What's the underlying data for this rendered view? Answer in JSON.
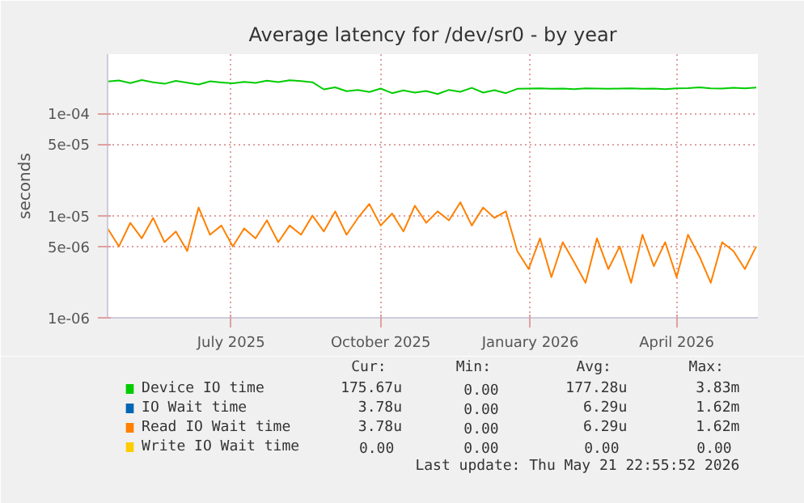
{
  "chart_data": {
    "type": "line",
    "title": "Average latency for /dev/sr0 - by year",
    "ylabel": "seconds",
    "log": "y",
    "grid": true,
    "legend": "bottom",
    "x": [
      "2025-04-16",
      "2025-04-23",
      "2025-04-30",
      "2025-05-07",
      "2025-05-14",
      "2025-05-21",
      "2025-05-28",
      "2025-06-04",
      "2025-06-11",
      "2025-06-18",
      "2025-06-25",
      "2025-07-02",
      "2025-07-09",
      "2025-07-16",
      "2025-07-23",
      "2025-07-30",
      "2025-08-06",
      "2025-08-13",
      "2025-08-20",
      "2025-08-27",
      "2025-09-03",
      "2025-09-10",
      "2025-09-17",
      "2025-09-24",
      "2025-10-01",
      "2025-10-08",
      "2025-10-15",
      "2025-10-22",
      "2025-10-29",
      "2025-11-05",
      "2025-11-12",
      "2025-11-19",
      "2025-11-26",
      "2025-12-03",
      "2025-12-10",
      "2025-12-17",
      "2025-12-24",
      "2025-12-31",
      "2026-01-07",
      "2026-01-14",
      "2026-01-21",
      "2026-01-28",
      "2026-02-04",
      "2026-02-11",
      "2026-02-18",
      "2026-02-25",
      "2026-03-04",
      "2026-03-11",
      "2026-03-18",
      "2026-03-25",
      "2026-04-01",
      "2026-04-08",
      "2026-04-15",
      "2026-04-22",
      "2026-04-29",
      "2026-05-06",
      "2026-05-13",
      "2026-05-20"
    ],
    "xlim": [
      "2025-04-16",
      "2026-05-21"
    ],
    "xticks": [
      {
        "value": "2025-07-01",
        "label": "July 2025"
      },
      {
        "value": "2025-10-01",
        "label": "October 2025"
      },
      {
        "value": "2026-01-01",
        "label": "January 2026"
      },
      {
        "value": "2026-04-01",
        "label": "April 2026"
      }
    ],
    "ylim": [
      1e-06,
      0.00038
    ],
    "yticks": [
      {
        "value": 1e-06,
        "label": "1e-06"
      },
      {
        "value": 5e-06,
        "label": "5e-06"
      },
      {
        "value": 1e-05,
        "label": "1e-05"
      },
      {
        "value": 5e-05,
        "label": "5e-05"
      },
      {
        "value": 0.0001,
        "label": "1e-04"
      }
    ],
    "series": [
      {
        "name": "Device IO time",
        "color": "#00cc00",
        "values": [
          0.000205,
          0.00021,
          0.000198,
          0.000212,
          0.000202,
          0.000195,
          0.000208,
          0.0002,
          0.000192,
          0.000206,
          0.000201,
          0.000197,
          0.000204,
          0.000199,
          0.000209,
          0.000203,
          0.000211,
          0.000207,
          0.000202,
          0.000172,
          0.00018,
          0.000165,
          0.00017,
          0.000162,
          0.000175,
          0.000158,
          0.000168,
          0.00016,
          0.000166,
          0.000155,
          0.00017,
          0.000163,
          0.000178,
          0.00016,
          0.000169,
          0.000158,
          0.000174,
          0.000175,
          0.000176,
          0.000174,
          0.000175,
          0.000173,
          0.000176,
          0.000175,
          0.000174,
          0.000175,
          0.000176,
          0.000174,
          0.000175,
          0.000173,
          0.000176,
          0.000177,
          0.00018,
          0.000176,
          0.000175,
          0.000178,
          0.000176,
          0.000179
        ]
      },
      {
        "name": "IO Wait time",
        "color": "#0066b3",
        "values": [
          null,
          null,
          null,
          null,
          null,
          null,
          null,
          null,
          null,
          null,
          null,
          null,
          null,
          null,
          null,
          null,
          null,
          null,
          null,
          null,
          null,
          null,
          null,
          null,
          null,
          null,
          null,
          null,
          null,
          null,
          null,
          null,
          null,
          null,
          null,
          null,
          null,
          null,
          null,
          null,
          null,
          null,
          null,
          null,
          null,
          null,
          null,
          null,
          null,
          null,
          null,
          null,
          null,
          null,
          null,
          null,
          null,
          null
        ]
      },
      {
        "name": "Read IO Wait time",
        "color": "#ff8000",
        "values": [
          7.5e-06,
          5e-06,
          8.5e-06,
          6e-06,
          9.5e-06,
          5.5e-06,
          7e-06,
          4.5e-06,
          1.2e-05,
          6.5e-06,
          8e-06,
          5e-06,
          7.5e-06,
          6e-06,
          9e-06,
          5.5e-06,
          8e-06,
          6.5e-06,
          1e-05,
          7e-06,
          1.1e-05,
          6.5e-06,
          9.5e-06,
          1.3e-05,
          8e-06,
          1.05e-05,
          7e-06,
          1.25e-05,
          8.5e-06,
          1.1e-05,
          9e-06,
          1.35e-05,
          8e-06,
          1.2e-05,
          9.5e-06,
          1.1e-05,
          4.5e-06,
          3e-06,
          6e-06,
          2.5e-06,
          5.5e-06,
          3.5e-06,
          2.2e-06,
          6e-06,
          3e-06,
          5e-06,
          2.2e-06,
          6.5e-06,
          3.2e-06,
          5.5e-06,
          2.5e-06,
          6.5e-06,
          4e-06,
          2.2e-06,
          5.5e-06,
          4.5e-06,
          3e-06,
          5e-06
        ]
      },
      {
        "name": "Write IO Wait time",
        "color": "#ffcc00",
        "values": [
          null,
          null,
          null,
          null,
          null,
          null,
          null,
          null,
          null,
          null,
          null,
          null,
          null,
          null,
          null,
          null,
          null,
          null,
          null,
          null,
          null,
          null,
          null,
          null,
          null,
          null,
          null,
          null,
          null,
          null,
          null,
          null,
          null,
          null,
          null,
          null,
          null,
          null,
          null,
          null,
          null,
          null,
          null,
          null,
          null,
          null,
          null,
          null,
          null,
          null,
          null,
          null,
          null,
          null,
          null,
          null,
          null,
          null
        ]
      }
    ],
    "annotations": [
      "Cur:",
      "Min:",
      "Avg:",
      "Max:",
      "175.67u",
      "0.00",
      "177.28u",
      "3.83m",
      "3.78u",
      "0.00",
      "6.29u",
      "1.62m",
      "3.78u",
      "0.00",
      "6.29u",
      "1.62m",
      "0.00",
      "0.00",
      "0.00",
      "0.00",
      "Last update: Thu May 21 22:55:52 2026"
    ]
  }
}
